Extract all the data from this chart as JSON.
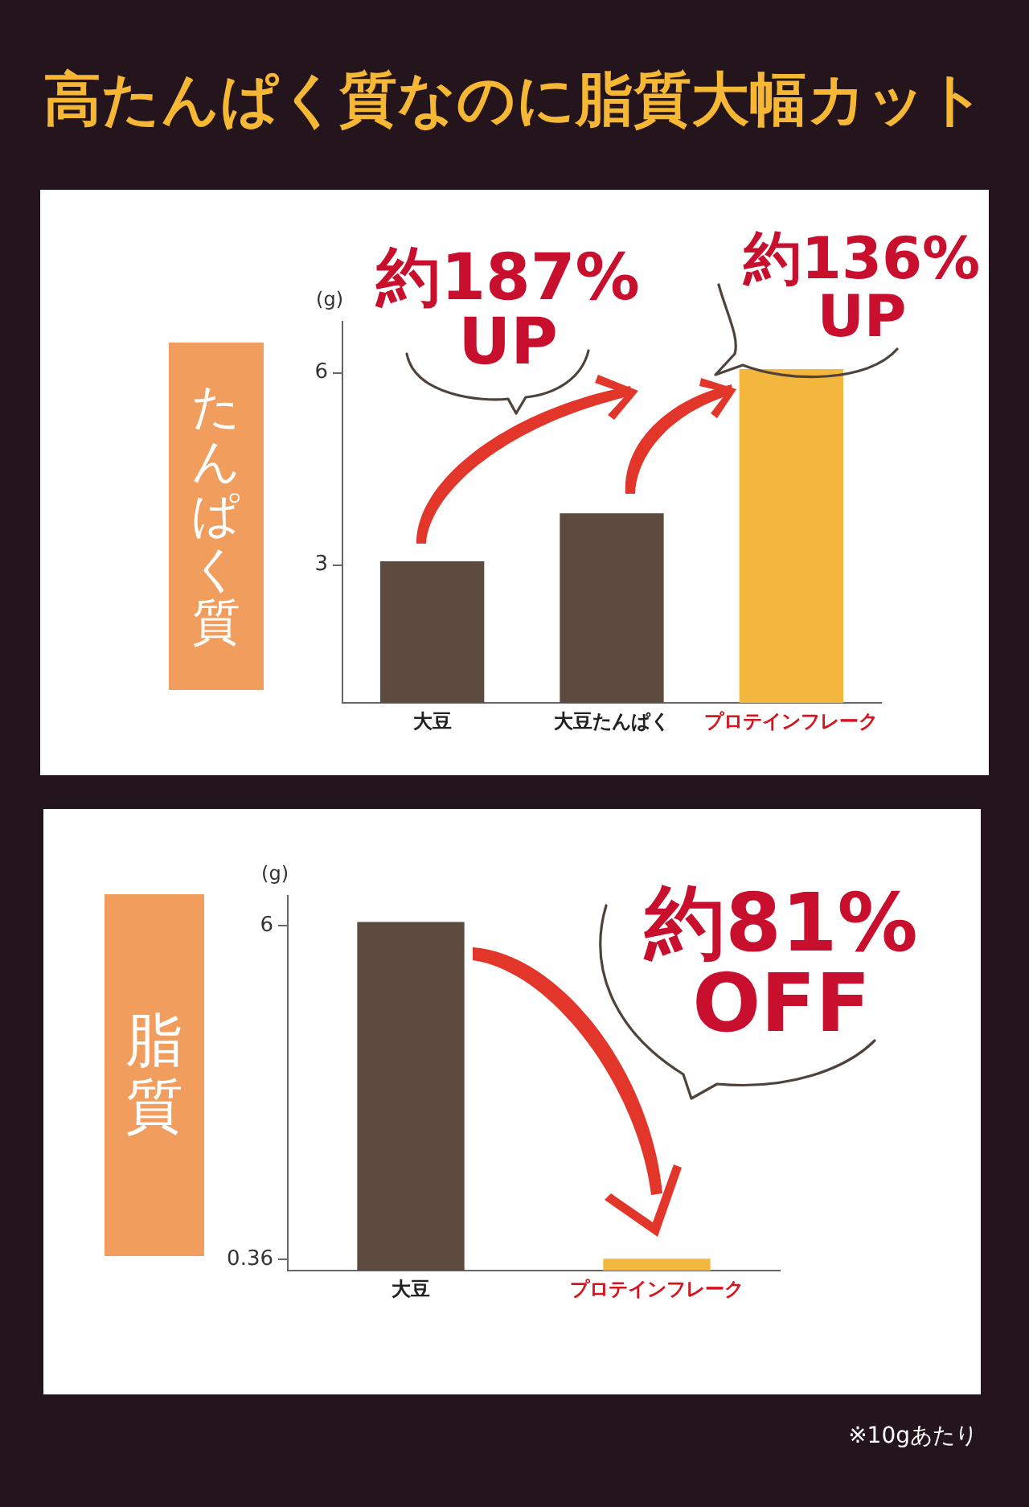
{
  "chart_data": [
    {
      "type": "bar",
      "title": "高たんぱく質なのに脂質大幅カット",
      "subtitle": "たんぱく質",
      "ylabel": "(g)",
      "categories": [
        "大豆",
        "大豆たんぱく",
        "プロテインフレーク"
      ],
      "values": [
        3.05,
        3.8,
        6.05
      ],
      "colors": [
        "#5c4b3e",
        "#5c4b3e",
        "#f4b73d"
      ],
      "ylim": [
        0.85,
        6.8
      ],
      "yticks": [
        3,
        6
      ],
      "annotations": [
        "約187% UP",
        "約136% UP"
      ]
    },
    {
      "type": "bar",
      "subtitle": "脂質",
      "ylabel": "(g)",
      "categories": [
        "大豆",
        "プロテインフレーク"
      ],
      "values": [
        6.05,
        0.36
      ],
      "colors": [
        "#5c4b3e",
        "#f4b73d"
      ],
      "ylim": [
        0.17,
        6.5
      ],
      "yticks": [
        0.36,
        6
      ],
      "annotations": [
        "約81% OFF",
        "※10gあたり"
      ]
    }
  ]
}
